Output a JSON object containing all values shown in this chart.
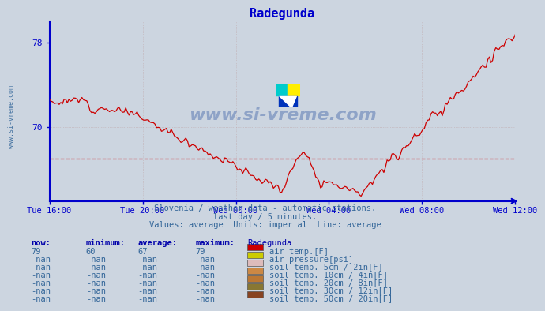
{
  "title": "Radegunda",
  "title_color": "#0000cc",
  "background_color": "#ccd5e0",
  "plot_bg_color": "#ccd5e0",
  "line_color": "#cc0000",
  "avg_line_color": "#cc0000",
  "avg_line_value": 67,
  "ylim_min": 63,
  "ylim_max": 80,
  "yticks": [
    70,
    78
  ],
  "xtick_labels": [
    "Tue 16:00",
    "Tue 20:00",
    "Wed 00:00",
    "Wed 04:00",
    "Wed 08:00",
    "Wed 12:00"
  ],
  "watermark_text": "www.si-vreme.com",
  "subtitle1": "Slovenia / weather data - automatic stations.",
  "subtitle2": "last day / 5 minutes.",
  "subtitle3": "Values: average  Units: imperial  Line: average",
  "subtitle_color": "#336699",
  "table_header_cols": [
    "now:",
    "minimum:",
    "average:",
    "maximum:",
    "Radegunda"
  ],
  "table_rows": [
    {
      "now": "79",
      "min": "60",
      "avg": "67",
      "max": "79",
      "color": "#cc0000",
      "label": "air temp.[F]"
    },
    {
      "now": "-nan",
      "min": "-nan",
      "avg": "-nan",
      "max": "-nan",
      "color": "#cccc00",
      "label": "air pressure[psi]"
    },
    {
      "now": "-nan",
      "min": "-nan",
      "avg": "-nan",
      "max": "-nan",
      "color": "#ddbbbb",
      "label": "soil temp. 5cm / 2in[F]"
    },
    {
      "now": "-nan",
      "min": "-nan",
      "avg": "-nan",
      "max": "-nan",
      "color": "#cc8844",
      "label": "soil temp. 10cm / 4in[F]"
    },
    {
      "now": "-nan",
      "min": "-nan",
      "avg": "-nan",
      "max": "-nan",
      "color": "#bb7733",
      "label": "soil temp. 20cm / 8in[F]"
    },
    {
      "now": "-nan",
      "min": "-nan",
      "avg": "-nan",
      "max": "-nan",
      "color": "#887733",
      "label": "soil temp. 30cm / 12in[F]"
    },
    {
      "now": "-nan",
      "min": "-nan",
      "avg": "-nan",
      "max": "-nan",
      "color": "#884422",
      "label": "soil temp. 50cm / 20in[F]"
    }
  ],
  "axis_color": "#0000cc",
  "grid_color": "#bb9999",
  "grid_alpha": 0.7,
  "logo_colors": [
    "#00cccc",
    "#ffee00",
    "#0033bb"
  ]
}
